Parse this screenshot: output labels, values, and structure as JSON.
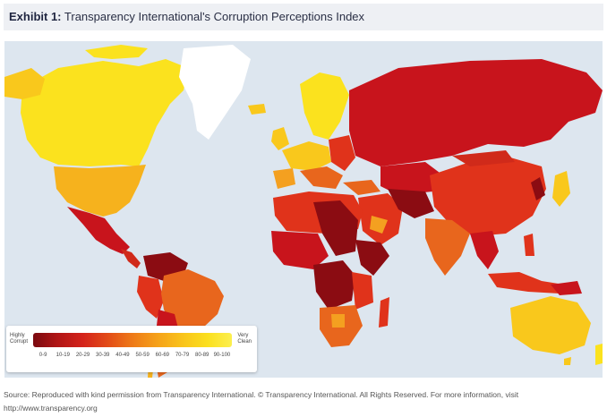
{
  "header": {
    "exhibit_label": "Exhibit 1:",
    "title": "Transparency International's Corruption Perceptions Index"
  },
  "legend": {
    "low_label_1": "Highly",
    "low_label_2": "Corrupt",
    "high_label_1": "Very",
    "high_label_2": "Clean",
    "ranges": [
      "0-9",
      "10-19",
      "20-29",
      "30-39",
      "40-49",
      "50-59",
      "60-69",
      "70-79",
      "80-89",
      "90-100"
    ]
  },
  "colors": {
    "ocean": "#dde6ef",
    "very_corrupt": "#8b0c12",
    "corrupt": "#c8141c",
    "mid_low": "#e0331b",
    "mid": "#e8661d",
    "mid_high": "#f4a020",
    "clean": "#f9c81c",
    "very_clean": "#fbe21e",
    "ice": "#ffffff"
  },
  "source": {
    "text": "Source: Reproduced with kind permission from Transparency International. © Transparency International. All Rights Reserved. For more information, visit http://www.transparency.org"
  }
}
